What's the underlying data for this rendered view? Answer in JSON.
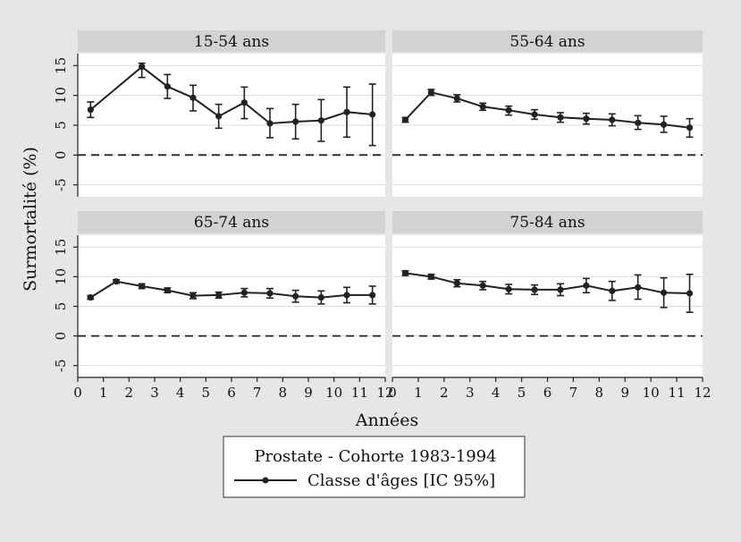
{
  "chart_data": {
    "type": "line",
    "ylabel": "Surmortalité (%)",
    "xlabel": "Années",
    "xlim": [
      0,
      12
    ],
    "ylim": [
      -7,
      17
    ],
    "x_ticks": [
      0,
      1,
      2,
      3,
      4,
      5,
      6,
      7,
      8,
      9,
      10,
      11,
      12
    ],
    "y_ticks": [
      -5,
      0,
      5,
      10,
      15
    ],
    "reference_line_y": 0,
    "grid": true,
    "legend": {
      "title": "Prostate - Cohorte 1983-1994",
      "entries": [
        "Classe d'âges [IC 95%]"
      ],
      "placement": "bottom"
    },
    "panels": [
      {
        "title": "15-54 ans",
        "x": [
          0.5,
          2.5,
          3.5,
          4.5,
          5.5,
          6.5,
          7.5,
          8.5,
          9.5,
          10.5,
          11.5
        ],
        "y": [
          7.6,
          14.8,
          11.5,
          9.6,
          6.5,
          8.8,
          5.3,
          5.6,
          5.8,
          7.2,
          6.8
        ],
        "lower": [
          6.3,
          13.0,
          9.5,
          7.4,
          4.5,
          6.1,
          2.9,
          2.7,
          2.3,
          3.0,
          1.6
        ],
        "upper": [
          8.9,
          15.4,
          13.5,
          11.7,
          8.5,
          11.4,
          7.8,
          8.5,
          9.3,
          11.4,
          11.9
        ]
      },
      {
        "title": "55-64 ans",
        "x": [
          0.5,
          1.5,
          2.5,
          3.5,
          4.5,
          5.5,
          6.5,
          7.5,
          8.5,
          9.5,
          10.5,
          11.5
        ],
        "y": [
          5.9,
          10.5,
          9.5,
          8.1,
          7.5,
          6.8,
          6.3,
          6.1,
          5.9,
          5.4,
          5.1,
          4.6
        ],
        "lower": [
          5.5,
          10.0,
          8.9,
          7.5,
          6.7,
          6.0,
          5.5,
          5.2,
          4.9,
          4.3,
          3.8,
          3.0
        ],
        "upper": [
          6.3,
          11.0,
          10.1,
          8.7,
          8.2,
          7.6,
          7.1,
          7.0,
          6.9,
          6.6,
          6.5,
          6.1
        ]
      },
      {
        "title": "65-74 ans",
        "x": [
          0.5,
          1.5,
          2.5,
          3.5,
          4.5,
          5.5,
          6.5,
          7.5,
          8.5,
          9.5,
          10.5,
          11.5
        ],
        "y": [
          6.5,
          9.2,
          8.4,
          7.7,
          6.8,
          6.9,
          7.3,
          7.2,
          6.7,
          6.5,
          6.9,
          6.9
        ],
        "lower": [
          6.2,
          8.9,
          8.0,
          7.3,
          6.3,
          6.4,
          6.6,
          6.4,
          5.7,
          5.4,
          5.6,
          5.4
        ],
        "upper": [
          6.8,
          9.5,
          8.8,
          8.1,
          7.3,
          7.4,
          8.0,
          8.0,
          7.7,
          7.6,
          8.2,
          8.4
        ]
      },
      {
        "title": "75-84 ans",
        "x": [
          0.5,
          1.5,
          2.5,
          3.5,
          4.5,
          5.5,
          6.5,
          7.5,
          8.5,
          9.5,
          10.5,
          11.5
        ],
        "y": [
          10.6,
          10.0,
          8.9,
          8.5,
          7.9,
          7.8,
          7.8,
          8.5,
          7.6,
          8.2,
          7.3,
          7.2
        ],
        "lower": [
          10.2,
          9.6,
          8.3,
          7.8,
          7.1,
          7.0,
          6.8,
          7.3,
          6.0,
          6.2,
          4.8,
          4.0
        ],
        "upper": [
          11.0,
          10.4,
          9.5,
          9.2,
          8.7,
          8.6,
          8.8,
          9.7,
          9.2,
          10.3,
          9.8,
          10.4
        ]
      }
    ]
  }
}
